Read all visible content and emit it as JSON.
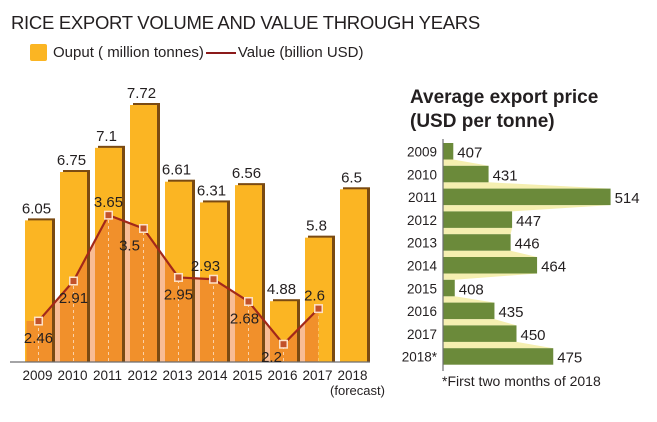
{
  "chart_data": [
    {
      "type": "bar",
      "title": "RICE EXPORT VOLUME AND VALUE THROUGH YEARS",
      "categories": [
        "2009",
        "2010",
        "2011",
        "2012",
        "2013",
        "2014",
        "2015",
        "2016",
        "2017",
        "2018"
      ],
      "category_sublabels": [
        "",
        "",
        "",
        "",
        "",
        "",
        "",
        "",
        "",
        "(forecast)"
      ],
      "series": [
        {
          "name": "Ouput ( million tonnes)",
          "type": "bar",
          "color": "#fbb523",
          "values": [
            6.05,
            6.75,
            7.1,
            7.72,
            6.61,
            6.31,
            6.56,
            4.88,
            5.8,
            6.5
          ],
          "labels": [
            "6.05",
            "6.75",
            "7.1",
            "7.72",
            "6.61",
            "6.31",
            "6.56",
            "4.88",
            "5.8",
            "6.5"
          ]
        },
        {
          "name": "Value (billion USD)",
          "type": "line",
          "color": "#a2281a",
          "fill_color": "#f1902b",
          "values": [
            2.46,
            2.91,
            3.65,
            3.5,
            2.95,
            2.93,
            2.68,
            2.2,
            2.6,
            null
          ],
          "labels": [
            "2.46",
            "2.91",
            "3.65",
            "3.5",
            "2.95",
            "2.93",
            "2.68",
            "2.2",
            "2.6",
            ""
          ]
        }
      ],
      "bar_axis_range": [
        4,
        8
      ],
      "line_axis_range": [
        2,
        4
      ],
      "grid": false,
      "legend": "top-left",
      "xlabel": "",
      "ylabel": ""
    },
    {
      "type": "bar",
      "orientation": "horizontal",
      "title": "Average export price (USD per tonne)",
      "title_lines": [
        "Average export price",
        "(USD per tonne)"
      ],
      "categories": [
        "2009",
        "2010",
        "2011",
        "2012",
        "2013",
        "2014",
        "2015",
        "2016",
        "2017",
        "2018*"
      ],
      "values": [
        407,
        431,
        514,
        447,
        446,
        464,
        408,
        435,
        450,
        475
      ],
      "labels": [
        "407",
        "431",
        "514",
        "447",
        "446",
        "464",
        "408",
        "435",
        "450",
        "475"
      ],
      "color": "#6b8a3a",
      "band_color": "#f5efb0",
      "xlim": [
        400,
        520
      ],
      "footnote": "*First two months of 2018",
      "grid": false,
      "xlabel": "",
      "ylabel": ""
    }
  ],
  "header": {
    "title": "RICE EXPORT VOLUME AND VALUE THROUGH YEARS",
    "legend_output": "Ouput ( million tonnes)",
    "legend_value": "Value (billion USD)"
  },
  "right_panel": {
    "title_line1": "Average export price",
    "title_line2": "(USD per tonne)",
    "footnote": "*First two months of 2018"
  }
}
